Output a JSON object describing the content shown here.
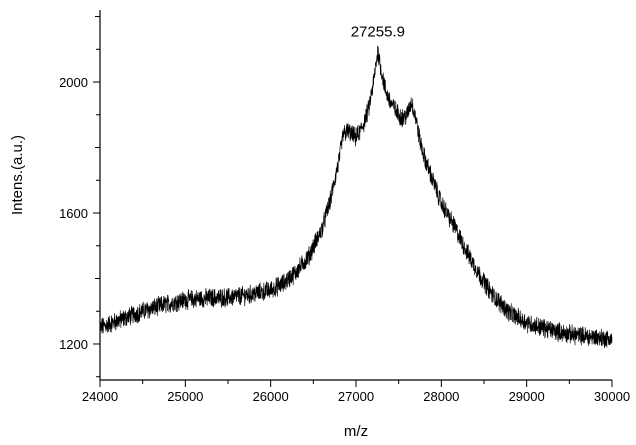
{
  "chart_data": {
    "type": "line",
    "title": "",
    "xlabel": "m/z",
    "ylabel": "Intens.(a.u.)",
    "xlim": [
      24000,
      30000
    ],
    "ylim": [
      1090,
      2220
    ],
    "x_ticks": [
      24000,
      25000,
      26000,
      27000,
      28000,
      29000,
      30000
    ],
    "x_tick_labels": [
      "24000",
      "25000",
      "26000",
      "27000",
      "28000",
      "29000",
      "30000"
    ],
    "y_ticks": [
      1200,
      1600,
      2000
    ],
    "y_tick_labels": [
      "1200",
      "1600",
      "2000"
    ],
    "grid": false,
    "legend": "none",
    "annotations": [
      {
        "text": "27255.9",
        "x": 27255.9,
        "y": 2115
      }
    ],
    "series": [
      {
        "color": "#000000",
        "noise_amplitude": 25,
        "x": [
          24000,
          24250,
          24500,
          24750,
          25000,
          25250,
          25500,
          25750,
          26000,
          26150,
          26300,
          26450,
          26600,
          26700,
          26800,
          26850,
          26900,
          26950,
          27000,
          27050,
          27100,
          27150,
          27200,
          27255.9,
          27300,
          27350,
          27400,
          27450,
          27500,
          27550,
          27600,
          27650,
          27700,
          27750,
          27800,
          27900,
          28000,
          28150,
          28300,
          28450,
          28600,
          28800,
          29000,
          29250,
          29500,
          29750,
          30000
        ],
        "y": [
          1250,
          1275,
          1300,
          1320,
          1335,
          1340,
          1342,
          1350,
          1365,
          1385,
          1420,
          1470,
          1550,
          1640,
          1760,
          1840,
          1850,
          1840,
          1830,
          1850,
          1880,
          1920,
          1990,
          2095,
          2030,
          1970,
          1940,
          1920,
          1900,
          1890,
          1900,
          1940,
          1890,
          1820,
          1770,
          1700,
          1630,
          1560,
          1480,
          1410,
          1350,
          1295,
          1265,
          1245,
          1230,
          1222,
          1215
        ]
      }
    ]
  }
}
